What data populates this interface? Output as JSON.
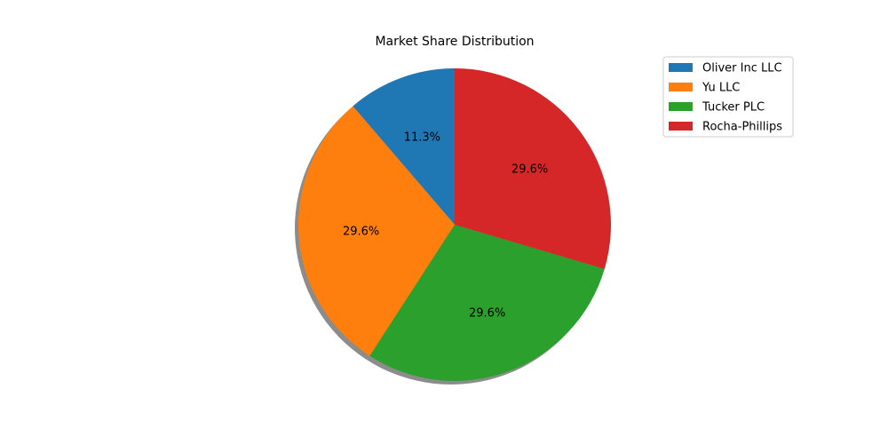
{
  "chart_data": {
    "type": "pie",
    "title": "Market Share Distribution",
    "labels": [
      "Oliver Inc LLC",
      "Yu LLC",
      "Tucker PLC",
      "Rocha-Phillips"
    ],
    "values": [
      11.3,
      29.6,
      29.6,
      29.6
    ],
    "percent_labels": [
      "11.3%",
      "29.6%",
      "29.6%",
      "29.6%"
    ],
    "colors": [
      "#1f77b4",
      "#ff7f0e",
      "#2ca02c",
      "#d62728"
    ],
    "start_angle": 90,
    "direction": "counterclockwise",
    "shadow": true,
    "legend_position": "top-right"
  }
}
